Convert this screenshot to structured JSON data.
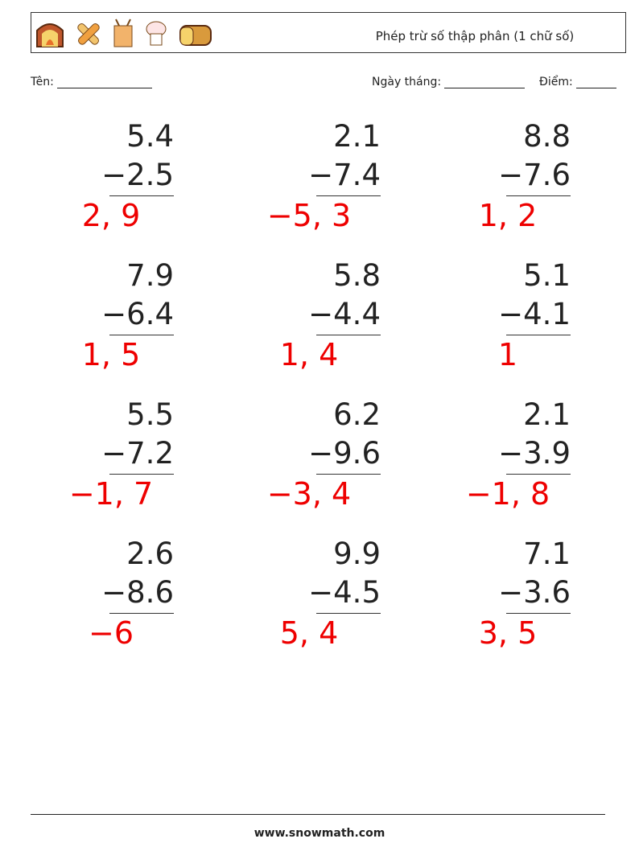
{
  "header": {
    "title": "Phép trừ số thập phân (1 chữ số)"
  },
  "fields": {
    "name": "Tên:",
    "date": "Ngày tháng:",
    "score": "Điểm:"
  },
  "problems": [
    {
      "top": "5.4",
      "bottom": "−2.5",
      "answer": "2, 9"
    },
    {
      "top": "2.1",
      "bottom": "−7.4",
      "answer": "−5, 3"
    },
    {
      "top": "8.8",
      "bottom": "−7.6",
      "answer": "1, 2"
    },
    {
      "top": "7.9",
      "bottom": "−6.4",
      "answer": "1, 5"
    },
    {
      "top": "5.8",
      "bottom": "−4.4",
      "answer": "1, 4"
    },
    {
      "top": "5.1",
      "bottom": "−4.1",
      "answer": "1"
    },
    {
      "top": "5.5",
      "bottom": "−7.2",
      "answer": "−1, 7"
    },
    {
      "top": "6.2",
      "bottom": "−9.6",
      "answer": "−3, 4"
    },
    {
      "top": "2.1",
      "bottom": "−3.9",
      "answer": "−1, 8"
    },
    {
      "top": "2.6",
      "bottom": "−8.6",
      "answer": "−6"
    },
    {
      "top": "9.9",
      "bottom": "−4.5",
      "answer": "5, 4"
    },
    {
      "top": "7.1",
      "bottom": "−3.6",
      "answer": "3, 5"
    }
  ],
  "footer": {
    "url": "www.snowmath.com"
  }
}
